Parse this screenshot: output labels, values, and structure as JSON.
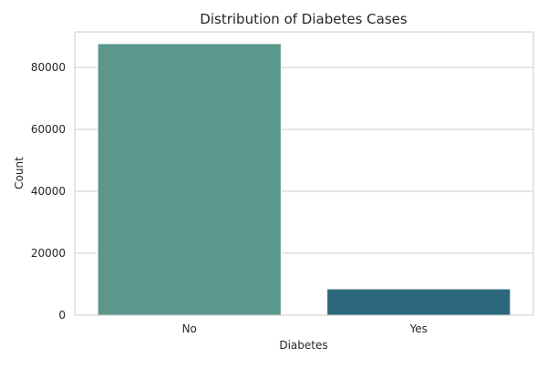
{
  "chart_data": {
    "type": "bar",
    "title": "Distribution of Diabetes Cases",
    "xlabel": "Diabetes",
    "ylabel": "Count",
    "categories": [
      "No",
      "Yes"
    ],
    "values": [
      87700,
      8500
    ],
    "ylim": [
      0,
      91500
    ],
    "yticks": [
      0,
      20000,
      40000,
      60000,
      80000
    ],
    "colors": [
      "#5b978b",
      "#2c687c"
    ],
    "grid": true,
    "legend": "none"
  }
}
